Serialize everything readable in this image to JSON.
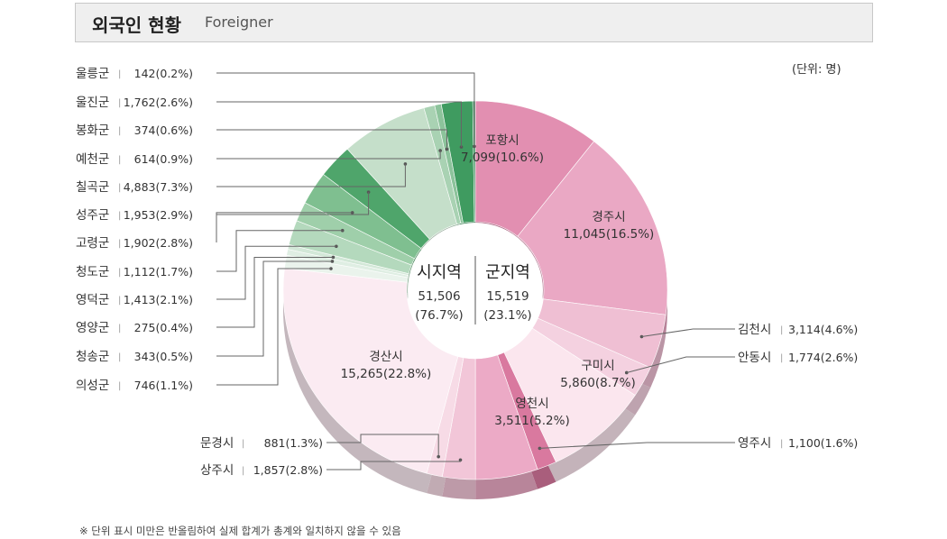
{
  "header": {
    "title": "외국인 현황",
    "subtitle": "Foreigner"
  },
  "unit_label": "(단위: 명)",
  "footnote": "※ 단위 표시 미만은 반올림하여 실제 합계가 총계와 일치하지 않을 수 있음",
  "chart_data": {
    "type": "pie",
    "variant": "3d-donut",
    "center": {
      "groups": [
        {
          "name": "시지역",
          "value": "51,506",
          "percent": "(76.7%)"
        },
        {
          "name": "군지역",
          "value": "15,519",
          "percent": "(23.1%)"
        }
      ]
    },
    "slices": [
      {
        "name": "포항시",
        "value": 7099,
        "display": "7,099(10.6%)",
        "group": "시지역",
        "color": "#e28fb1"
      },
      {
        "name": "경주시",
        "value": 11045,
        "display": "11,045(16.5%)",
        "group": "시지역",
        "color": "#eaa8c4"
      },
      {
        "name": "김천시",
        "value": 3114,
        "display": "3,114(4.6%)",
        "group": "시지역",
        "color": "#efbfd3"
      },
      {
        "name": "안동시",
        "value": 1774,
        "display": "1,774(2.6%)",
        "group": "시지역",
        "color": "#f4d1e0"
      },
      {
        "name": "구미시",
        "value": 5860,
        "display": "5,860(8.7%)",
        "group": "시지역",
        "color": "#fbe6ee"
      },
      {
        "name": "영주시",
        "value": 1100,
        "display": "1,100(1.6%)",
        "group": "시지역",
        "color": "#d9799f"
      },
      {
        "name": "영천시",
        "value": 3511,
        "display": "3,511(5.2%)",
        "group": "시지역",
        "color": "#ecaac6"
      },
      {
        "name": "상주시",
        "value": 1857,
        "display": "1,857(2.8%)",
        "group": "시지역",
        "color": "#f2c6d8"
      },
      {
        "name": "문경시",
        "value": 881,
        "display": "881(1.3%)",
        "group": "시지역",
        "color": "#f7dbe6"
      },
      {
        "name": "경산시",
        "value": 15265,
        "display": "15,265(22.8%)",
        "group": "시지역",
        "color": "#fbebf2"
      },
      {
        "name": "의성군",
        "value": 746,
        "display": "746(1.1%)",
        "group": "군지역",
        "color": "#eaf3ec"
      },
      {
        "name": "청송군",
        "value": 343,
        "display": "343(0.5%)",
        "group": "군지역",
        "color": "#dfeee3"
      },
      {
        "name": "영양군",
        "value": 275,
        "display": "275(0.4%)",
        "group": "군지역",
        "color": "#d3e8d8"
      },
      {
        "name": "영덕군",
        "value": 1413,
        "display": "1,413(2.1%)",
        "group": "군지역",
        "color": "#b4d9bd"
      },
      {
        "name": "청도군",
        "value": 1112,
        "display": "1,112(1.7%)",
        "group": "군지역",
        "color": "#9fcfaa"
      },
      {
        "name": "고령군",
        "value": 1902,
        "display": "1,902(2.8%)",
        "group": "군지역",
        "color": "#7fbf90"
      },
      {
        "name": "성주군",
        "value": 1953,
        "display": "1,953(2.9%)",
        "group": "군지역",
        "color": "#4fa56b"
      },
      {
        "name": "칠곡군",
        "value": 4883,
        "display": "4,883(7.3%)",
        "group": "군지역",
        "color": "#c5dfca"
      },
      {
        "name": "예천군",
        "value": 614,
        "display": "614(0.9%)",
        "group": "군지역",
        "color": "#a9d2b3"
      },
      {
        "name": "봉화군",
        "value": 374,
        "display": "374(0.6%)",
        "group": "군지역",
        "color": "#8cc39b"
      },
      {
        "name": "울진군",
        "value": 1762,
        "display": "1,762(2.6%)",
        "group": "군지역",
        "color": "#3f9b60"
      },
      {
        "name": "울릉군",
        "value": 142,
        "display": "142(0.2%)",
        "group": "군지역",
        "color": "#2f8a52"
      }
    ]
  }
}
